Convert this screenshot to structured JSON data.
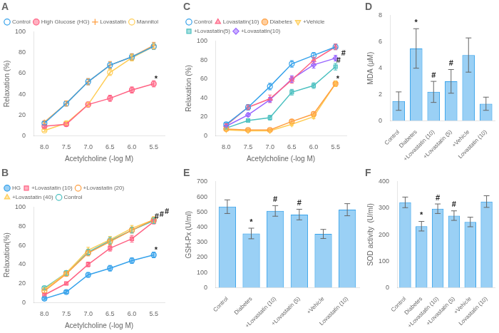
{
  "chart_data": [
    {
      "type": "line",
      "title": "A",
      "xlabel": "Acetylcholine (-log M)",
      "ylabel": "Relaxation (%)",
      "x": [
        8.0,
        7.5,
        7.0,
        6.5,
        6.0,
        5.5
      ],
      "xlim": [
        8.25,
        5.25
      ],
      "xticks": [
        {
          "value": 8.0,
          "label": "8.0"
        },
        7.5,
        {
          "value": 7.0,
          "label": "7.0"
        },
        6.5,
        {
          "value": 6.0,
          "label": "6.0"
        },
        5.5
      ],
      "ylim": [
        0,
        100
      ],
      "yticks": [
        0,
        20,
        40,
        60,
        80,
        100
      ],
      "grid": false,
      "legend": "upper left",
      "series": [
        {
          "name": "Control",
          "marker": "open circle",
          "values": [
            12,
            31,
            52,
            68,
            76,
            86
          ],
          "yerr": [
            1.5,
            2.5,
            3,
            3,
            3,
            3
          ]
        },
        {
          "name": "High Glucose (HG)",
          "marker": "circle",
          "values": [
            9,
            11,
            30,
            36,
            44,
            50
          ],
          "yerr": [
            1,
            1.5,
            2.5,
            3,
            3,
            3
          ]
        },
        {
          "name": "Lovastatin",
          "marker": "plus",
          "values": [
            13,
            31,
            52,
            68,
            76,
            87
          ],
          "yerr": [
            1.5,
            2.5,
            3,
            3.5,
            3,
            3
          ]
        },
        {
          "name": "Mannitol",
          "marker": "open circle",
          "values": [
            5,
            12,
            30,
            61,
            75,
            86
          ],
          "yerr": [
            1,
            1.5,
            2,
            3,
            3,
            2.5
          ]
        }
      ],
      "annotations": [
        {
          "text": "*",
          "x": 5.5,
          "y": 51
        }
      ]
    },
    {
      "type": "line",
      "title": "C",
      "xlabel": "Acetylcholine (-log M)",
      "ylabel": "Relaxation (%)",
      "x": [
        8.0,
        7.5,
        7.0,
        6.5,
        6.0,
        5.5
      ],
      "xlim": [
        8.25,
        5.25
      ],
      "xticks": [
        {
          "value": 8.0,
          "label": "8.0"
        },
        7.5,
        {
          "value": 7.0,
          "label": "7.0"
        },
        6.5,
        {
          "value": 6.0,
          "label": "6.0"
        },
        5.5
      ],
      "ylim": [
        0,
        100
      ],
      "yticks": [
        0,
        20,
        40,
        60,
        80,
        100
      ],
      "grid": false,
      "legend": "upper left",
      "series": [
        {
          "name": "Control",
          "marker": "open circle",
          "values": [
            12,
            30,
            52,
            76,
            85,
            94
          ],
          "yerr": [
            1.5,
            3,
            3.5,
            3.5,
            3,
            3
          ]
        },
        {
          "name": "Lovastatin(10)",
          "marker": "triangle-up",
          "values": [
            11,
            30,
            39,
            59,
            80,
            94
          ],
          "yerr": [
            1.5,
            2.5,
            4,
            3.5,
            3,
            3
          ]
        },
        {
          "name": "Diabetes",
          "marker": "circle",
          "values": [
            7,
            6,
            6,
            15,
            23,
            55
          ],
          "yerr": [
            1,
            1,
            1,
            2,
            2.5,
            3
          ]
        },
        {
          "name": "+Vehicle",
          "marker": "triangle-down",
          "values": [
            6,
            5,
            5,
            12,
            20,
            55
          ],
          "yerr": [
            1,
            1,
            1,
            1.5,
            2,
            3
          ]
        },
        {
          "name": "+Lovastatin(5)",
          "marker": "square",
          "values": [
            8,
            16,
            19,
            46,
            53,
            73
          ],
          "yerr": [
            1,
            1.5,
            2.5,
            3,
            3,
            3.5
          ]
        },
        {
          "name": "+Lovastatin(10)",
          "marker": "diamond",
          "values": [
            10,
            22,
            38,
            60,
            75,
            82
          ],
          "yerr": [
            1,
            2,
            2.5,
            3.5,
            3.5,
            3
          ]
        }
      ],
      "annotations": [
        {
          "text": "*",
          "x": 5.5,
          "y": 56
        },
        {
          "text": "#",
          "x": 5.5,
          "y": 75
        },
        {
          "text": "#",
          "x": 5.5,
          "y": 83
        }
      ]
    },
    {
      "type": "bar",
      "title": "D",
      "ylabel": "MDA (μM)",
      "categories": [
        "Control",
        "Diabetes",
        "+Lovastatin (10)",
        "+Lovastatin (5)",
        "+Vehicle",
        "Lovastatin (10)"
      ],
      "values": [
        1.5,
        5.5,
        2.2,
        3.0,
        5.0,
        1.3
      ],
      "yerr": [
        0.7,
        1.5,
        0.8,
        0.9,
        1.3,
        0.5
      ],
      "ylim": [
        0,
        8
      ],
      "yticks": [
        0,
        2,
        4,
        6,
        8
      ],
      "grid": false,
      "annotations": [
        {
          "text": "*",
          "x": "Diabetes"
        },
        {
          "text": "#",
          "x": "+Lovastatin (10)"
        },
        {
          "text": "#",
          "x": "+Lovastatin (5)"
        }
      ]
    },
    {
      "type": "line",
      "title": "B",
      "xlabel": "Acetylcholine (-log M)",
      "ylabel": "Relaxation(%)",
      "x": [
        8.0,
        7.5,
        7.0,
        6.5,
        6.0,
        5.5
      ],
      "xlim": [
        8.25,
        5.25
      ],
      "xticks": [
        {
          "value": 8.0,
          "label": "8.0"
        },
        7.5,
        {
          "value": 7.0,
          "label": "7.0"
        },
        6.5,
        {
          "value": 6.0,
          "label": "6.0"
        },
        5.5
      ],
      "ylim": [
        0,
        100
      ],
      "yticks": [
        0,
        20,
        40,
        60,
        80,
        100
      ],
      "grid": false,
      "legend": "upper left",
      "series": [
        {
          "name": "HG",
          "marker": "circle",
          "values": [
            4,
            11,
            29,
            36,
            44,
            50
          ],
          "yerr": [
            1,
            1.5,
            2.5,
            3,
            3,
            3
          ]
        },
        {
          "name": "+Lovastatin (10)",
          "marker": "square",
          "values": [
            8,
            20,
            40,
            57,
            67,
            85
          ],
          "yerr": [
            1,
            1.5,
            2.5,
            3,
            3.5,
            2.5
          ]
        },
        {
          "name": "+Lovastatin (20)",
          "marker": "open circle",
          "values": [
            12,
            30,
            52,
            64,
            76,
            87
          ],
          "yerr": [
            1.5,
            2.5,
            3,
            3.5,
            3,
            3
          ]
        },
        {
          "name": "+Lovastatin (40)",
          "marker": "triangle-up",
          "values": [
            14,
            31,
            55,
            66,
            78,
            87
          ],
          "yerr": [
            1.5,
            2.5,
            3,
            3.5,
            3,
            3
          ]
        },
        {
          "name": "Control",
          "marker": "open circle",
          "values": [
            15,
            31,
            53,
            65,
            76,
            86
          ],
          "yerr": [
            1.5,
            2.5,
            3,
            3.5,
            3,
            3
          ]
        }
      ],
      "annotations": [
        {
          "text": "*",
          "x": 5.5,
          "y": 51
        },
        {
          "text": "#",
          "x": 5.5,
          "y": 86
        },
        {
          "text": "#",
          "x": 5.5,
          "y": 88.5
        },
        {
          "text": "#",
          "x": 5.5,
          "y": 91.5
        }
      ]
    },
    {
      "type": "bar",
      "title": "E",
      "ylabel": "GSH-Px (U/ml)",
      "categories": [
        "Control",
        "Diabetes",
        "+Lovastatin (10)",
        "+Lovastatin (5)",
        "+Vehicle",
        "Lovastatin (10)"
      ],
      "values": [
        535,
        358,
        507,
        483,
        355,
        515
      ],
      "yerr": [
        45,
        35,
        35,
        35,
        30,
        40
      ],
      "ylim": [
        0,
        700
      ],
      "yticks": [
        0,
        100,
        200,
        300,
        400,
        500,
        600,
        700
      ],
      "grid": false,
      "annotations": [
        {
          "text": "*",
          "x": "Diabetes"
        },
        {
          "text": "#",
          "x": "+Lovastatin (10)"
        },
        {
          "text": "#",
          "x": "+Lovastatin (5)"
        }
      ]
    },
    {
      "type": "bar",
      "title": "F",
      "ylabel": "SOD activity  (U/ml)",
      "categories": [
        "Control",
        "Diabetes",
        "+Lovastatin (10)",
        "+Lovastatin (5)",
        "+Vehicle",
        "Lovastatin (10)"
      ],
      "values": [
        322,
        232,
        298,
        272,
        248,
        325
      ],
      "yerr": [
        20,
        18,
        18,
        18,
        18,
        22
      ],
      "ylim": [
        0,
        400
      ],
      "yticks": [
        0,
        100,
        200,
        300,
        400
      ],
      "grid": false,
      "annotations": [
        {
          "text": "*",
          "x": "Diabetes"
        },
        {
          "text": "#",
          "x": "+Lovastatin (10)"
        },
        {
          "text": "#",
          "x": "+Lovastatin (5)"
        }
      ]
    }
  ]
}
